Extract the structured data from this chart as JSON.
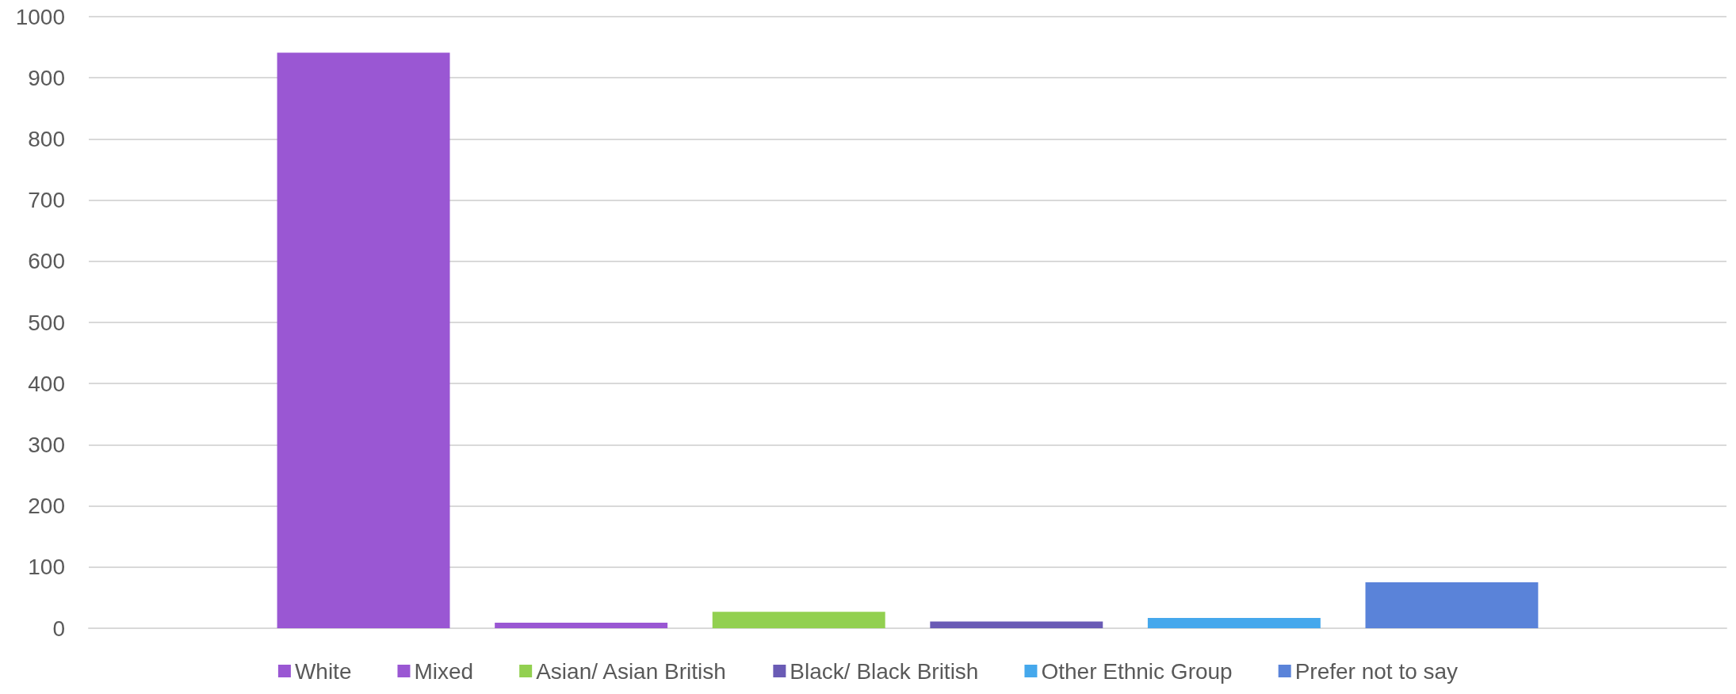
{
  "chart_data": {
    "type": "bar",
    "categories": [
      null
    ],
    "series": [
      {
        "name": "White",
        "color": "#9a57d3",
        "values": [
          941
        ]
      },
      {
        "name": "Mixed",
        "color": "#9a57d3",
        "values": [
          9
        ]
      },
      {
        "name": "Asian/ Asian British",
        "color": "#92d050",
        "values": [
          27
        ]
      },
      {
        "name": "Black/ Black British",
        "color": "#6a5bb5",
        "values": [
          11
        ]
      },
      {
        "name": "Other Ethnic Group",
        "color": "#45a8ec",
        "values": [
          17
        ]
      },
      {
        "name": "Prefer not to say",
        "color": "#5a83d9",
        "values": [
          75
        ]
      }
    ],
    "ylim": [
      0,
      1000
    ],
    "yticks": [
      0,
      100,
      200,
      300,
      400,
      500,
      600,
      700,
      800,
      900,
      1000
    ],
    "grid": "y",
    "legend": "bottom"
  }
}
